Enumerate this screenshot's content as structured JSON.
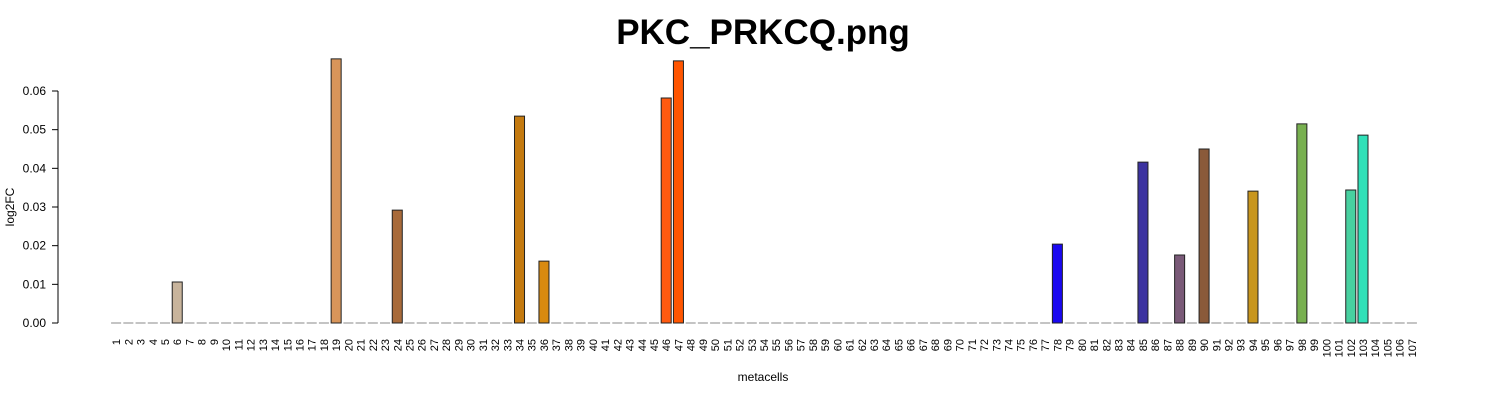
{
  "chart_data": {
    "type": "bar",
    "title": "PKC_PRKCQ.png",
    "x_label": "metacells",
    "y_label": "log2FC",
    "categories": [
      "1",
      "2",
      "3",
      "4",
      "5",
      "6",
      "7",
      "8",
      "9",
      "10",
      "11",
      "12",
      "13",
      "14",
      "15",
      "16",
      "17",
      "18",
      "19",
      "20",
      "21",
      "22",
      "23",
      "24",
      "25",
      "26",
      "27",
      "28",
      "29",
      "30",
      "31",
      "32",
      "33",
      "34",
      "35",
      "36",
      "37",
      "38",
      "39",
      "40",
      "41",
      "42",
      "43",
      "44",
      "45",
      "46",
      "47",
      "48",
      "49",
      "50",
      "51",
      "52",
      "53",
      "54",
      "55",
      "56",
      "57",
      "58",
      "59",
      "60",
      "61",
      "62",
      "63",
      "64",
      "65",
      "66",
      "67",
      "68",
      "69",
      "70",
      "71",
      "72",
      "73",
      "74",
      "75",
      "76",
      "77",
      "78",
      "79",
      "80",
      "81",
      "82",
      "83",
      "84",
      "85",
      "86",
      "87",
      "88",
      "89",
      "90",
      "91",
      "92",
      "93",
      "94",
      "95",
      "96",
      "97",
      "98",
      "99",
      "100",
      "101",
      "102",
      "103",
      "104",
      "105",
      "106",
      "107"
    ],
    "values": [
      0,
      0,
      0,
      0,
      0,
      0.0106,
      0,
      0,
      0,
      0,
      0,
      0,
      0,
      0,
      0,
      0,
      0,
      0,
      0.0683,
      0,
      0,
      0,
      0,
      0.0292,
      0,
      0,
      0,
      0,
      0,
      0,
      0,
      0,
      0,
      0.0535,
      0,
      0.016,
      0,
      0,
      0,
      0,
      0,
      0,
      0,
      0,
      0,
      0.0582,
      0.0678,
      0,
      0,
      0,
      0,
      0,
      0,
      0,
      0,
      0,
      0,
      0,
      0,
      0,
      0,
      0,
      0,
      0,
      0,
      0,
      0,
      0,
      0,
      0,
      0,
      0,
      0,
      0,
      0,
      0,
      0,
      0.0204,
      0,
      0,
      0,
      0,
      0,
      0,
      0.0416,
      0,
      0,
      0.0176,
      0,
      0.045,
      0,
      0,
      0,
      0.0341,
      0,
      0,
      0,
      0.0515,
      0,
      0,
      0,
      0.0344,
      0.0486,
      0,
      0,
      0,
      0
    ],
    "colors": [
      "#888888",
      "#888888",
      "#888888",
      "#888888",
      "#888888",
      "#c8b49c",
      "#888888",
      "#888888",
      "#888888",
      "#888888",
      "#888888",
      "#888888",
      "#888888",
      "#888888",
      "#888888",
      "#888888",
      "#888888",
      "#888888",
      "#d8955a",
      "#888888",
      "#888888",
      "#888888",
      "#888888",
      "#a86a3a",
      "#888888",
      "#888888",
      "#888888",
      "#888888",
      "#888888",
      "#888888",
      "#888888",
      "#888888",
      "#888888",
      "#c47a10",
      "#888888",
      "#d88a10",
      "#888888",
      "#888888",
      "#888888",
      "#888888",
      "#888888",
      "#888888",
      "#888888",
      "#888888",
      "#888888",
      "#ff5a10",
      "#ff5500",
      "#888888",
      "#888888",
      "#888888",
      "#888888",
      "#888888",
      "#888888",
      "#888888",
      "#888888",
      "#888888",
      "#888888",
      "#888888",
      "#888888",
      "#888888",
      "#888888",
      "#888888",
      "#888888",
      "#888888",
      "#888888",
      "#888888",
      "#888888",
      "#888888",
      "#888888",
      "#888888",
      "#888888",
      "#888888",
      "#888888",
      "#888888",
      "#888888",
      "#888888",
      "#888888",
      "#1a08f0",
      "#888888",
      "#888888",
      "#888888",
      "#888888",
      "#888888",
      "#888888",
      "#3c32a0",
      "#888888",
      "#888888",
      "#7a5a78",
      "#888888",
      "#8a5a3a",
      "#888888",
      "#888888",
      "#888888",
      "#c8961e",
      "#888888",
      "#888888",
      "#888888",
      "#78b050",
      "#888888",
      "#888888",
      "#888888",
      "#48d0a0",
      "#30e0b8",
      "#888888",
      "#888888",
      "#888888",
      "#888888"
    ],
    "ylim": [
      0,
      0.07
    ],
    "yticks": [
      {
        "value": 0,
        "label": "0.00"
      },
      {
        "value": 0.01,
        "label": "0.01"
      },
      {
        "value": 0.02,
        "label": "0.02"
      },
      {
        "value": 0.03,
        "label": "0.03"
      },
      {
        "value": 0.04,
        "label": "0.04"
      },
      {
        "value": 0.05,
        "label": "0.05"
      },
      {
        "value": 0.06,
        "label": "0.06"
      }
    ]
  }
}
